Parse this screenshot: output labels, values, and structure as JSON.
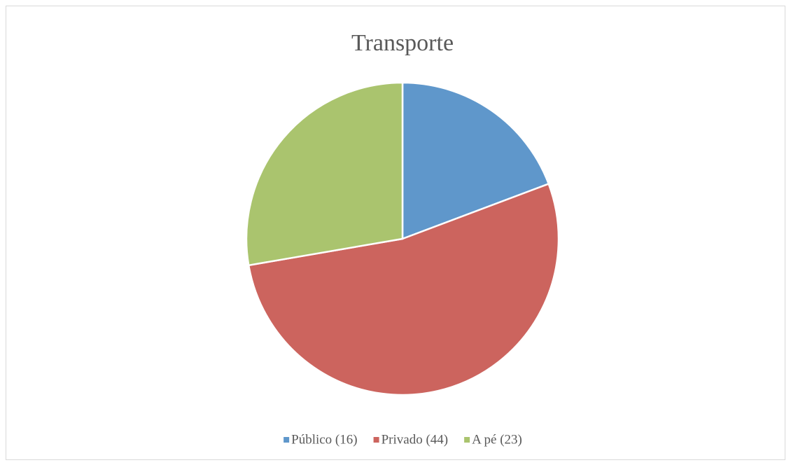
{
  "chart_data": {
    "type": "pie",
    "title": "Transporte",
    "categories": [
      "Público (16)",
      "Privado (44)",
      "A pé (23)"
    ],
    "values": [
      16,
      44,
      23
    ],
    "colors": [
      "#5f97cb",
      "#cc645e",
      "#aac46e"
    ],
    "legend": "bottom"
  }
}
